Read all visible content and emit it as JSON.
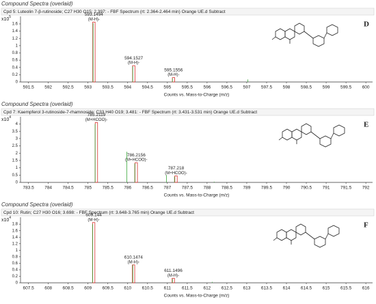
{
  "chart_data": [
    {
      "type": "spectrum",
      "title": "Compound Spectra (overlaid)",
      "subtitle": "Cpd 5: Luteolin 7-β-rutinoside; C27 H30 O15; 2.397: - FBF Spectrum (rt: 2.364-2.464 min) Orange UE.d  Subtract",
      "panel_label": "D",
      "y_multiplier": "x10",
      "y_exponent": 5,
      "x_label": "Counts vs. Mass-to-Charge (m/z)",
      "xlim": [
        591.3,
        600.17
      ],
      "xticks": [
        591.5,
        592,
        592.5,
        593,
        593.5,
        594,
        594.5,
        595,
        595.5,
        596,
        596.5,
        597,
        597.5,
        598,
        598.5,
        599,
        599.5,
        600
      ],
      "ylim": [
        0,
        1.75
      ],
      "yticks": [
        0,
        0.2,
        0.4,
        0.6,
        0.8,
        1,
        1.2,
        1.4,
        1.6
      ],
      "peaks": {
        "color": "#d9302c",
        "x": [
          593.1494,
          594.1527,
          595.1556
        ],
        "values": [
          1.65,
          0.45,
          0.12
        ],
        "ion_labels": [
          "(M-H)-",
          "(M-H)-",
          "(M-H)-"
        ]
      },
      "measured": {
        "color": "#3aa63a",
        "x": [
          593.15,
          594.15,
          595.15,
          597.05
        ],
        "values": [
          1.62,
          0.43,
          0.1,
          0.07
        ]
      }
    },
    {
      "type": "spectrum",
      "title": "Compound Spectra (overlaid)",
      "subtitle": "Cpd 7: Kaempferol 3-rutinoside-7-rhamnoside; C33 H40 O19; 3.481: - FBF Spectrum (rt: 3.431-3.531 min) Orange UE.d  Subtract",
      "panel_label": "E",
      "y_multiplier": "x10",
      "y_exponent": 4,
      "x_label": "Counts vs. Mass-to-Charge (m/z)",
      "xlim": [
        783.3,
        792.17
      ],
      "xticks": [
        783.5,
        784,
        784.5,
        785,
        785.5,
        786,
        786.5,
        787,
        787.5,
        788,
        788.5,
        789,
        789.5,
        790,
        790.5,
        791,
        791.5,
        792
      ],
      "ylim": [
        0,
        4.35
      ],
      "yticks": [
        0,
        0.5,
        1,
        1.5,
        2,
        2.5,
        3,
        3.5,
        4
      ],
      "peaks": {
        "color": "#d9302c",
        "x": [
          785.2119,
          786.2156,
          787.218
        ],
        "values": [
          4.1,
          1.35,
          0.45
        ],
        "ion_labels": [
          "(M+HCOO)-",
          "(M+HCOO)-",
          "(M+HCOO)-"
        ]
      },
      "measured": {
        "color": "#3aa63a",
        "x": [
          785.2,
          786.0,
          786.2,
          787.0,
          787.2,
          788.2
        ],
        "values": [
          4.0,
          2.1,
          1.3,
          0.5,
          0.4,
          0.05
        ]
      }
    },
    {
      "type": "spectrum",
      "title": "Compound Spectra (overlaid)",
      "subtitle": "Cpd 10: Rutin; C27 H30 O16; 3.698: - FBF Spectrum (rt: 3.648-3.765 min) Orange UE.d  Subtract",
      "panel_label": "F",
      "y_multiplier": "x10",
      "y_exponent": 4,
      "x_label": "Counts vs. Mass-to-Charge (m/z)",
      "xlim": [
        607.3,
        616.17
      ],
      "xticks": [
        607.5,
        608,
        608.5,
        609,
        609.5,
        610,
        610.5,
        611,
        611.5,
        612,
        612.5,
        613,
        613.5,
        614,
        614.5,
        615,
        615.5,
        616
      ],
      "ylim": [
        0,
        1.95
      ],
      "yticks": [
        0,
        0.2,
        0.4,
        0.6,
        0.8,
        1,
        1.2,
        1.4,
        1.6,
        1.8
      ],
      "peaks": {
        "color": "#d9302c",
        "x": [
          609.144,
          610.1474,
          611.1496
        ],
        "values": [
          1.85,
          0.55,
          0.14
        ],
        "ion_labels": [
          "(M-H)-",
          "(M-H)-",
          "(M-H)-"
        ]
      },
      "measured": {
        "color": "#3aa63a",
        "x": [
          609.14,
          610.15,
          611.15,
          612.15
        ],
        "values": [
          1.8,
          0.55,
          0.12,
          0.03
        ]
      }
    }
  ]
}
